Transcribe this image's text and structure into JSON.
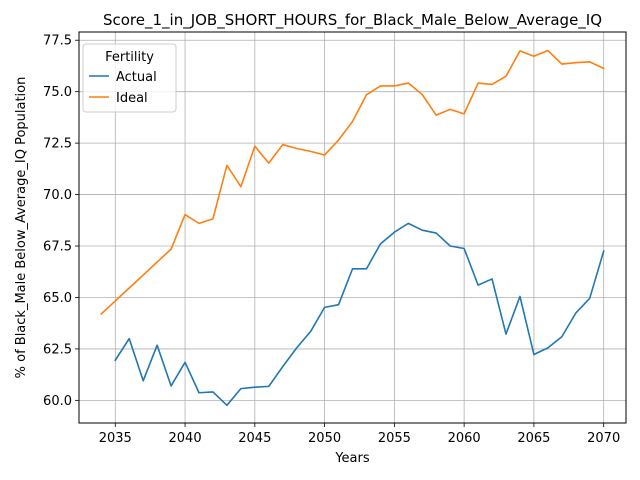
{
  "chart_data": {
    "type": "line",
    "title": "Score_1_in_JOB_SHORT_HOURS_for_Black_Male_Below_Average_IQ",
    "xlabel": "Years",
    "ylabel": "% of Black_Male Below_Average_IQ Population",
    "xlim": [
      2032.4,
      2071.6
    ],
    "ylim": [
      58.9,
      77.9
    ],
    "xticks": [
      2035,
      2040,
      2045,
      2050,
      2055,
      2060,
      2065,
      2070
    ],
    "xtick_labels": [
      "2035",
      "2040",
      "2045",
      "2050",
      "2055",
      "2060",
      "2065",
      "2070"
    ],
    "yticks": [
      60.0,
      62.5,
      65.0,
      67.5,
      70.0,
      72.5,
      75.0,
      77.5
    ],
    "ytick_labels": [
      "60.0",
      "62.5",
      "65.0",
      "67.5",
      "70.0",
      "72.5",
      "75.0",
      "77.5"
    ],
    "grid": true,
    "legend": {
      "title": "Fertility",
      "position": "top-left"
    },
    "series": [
      {
        "name": "Actual",
        "color": "#1f77b4",
        "x": [
          2035,
          2036,
          2037,
          2038,
          2039,
          2040,
          2041,
          2042,
          2043,
          2044,
          2045,
          2046,
          2047,
          2048,
          2049,
          2050,
          2051,
          2052,
          2053,
          2054,
          2055,
          2056,
          2057,
          2058,
          2059,
          2060,
          2061,
          2062,
          2063,
          2064,
          2065,
          2066,
          2067,
          2068,
          2069,
          2070
        ],
        "values": [
          61.95,
          63.0,
          60.95,
          62.68,
          60.7,
          61.85,
          60.37,
          60.41,
          59.76,
          60.57,
          60.64,
          60.68,
          61.64,
          62.55,
          63.35,
          64.52,
          64.65,
          66.39,
          66.39,
          67.6,
          68.17,
          68.6,
          68.27,
          68.13,
          67.5,
          67.38,
          65.6,
          65.9,
          63.22,
          65.05,
          62.23,
          62.55,
          63.09,
          64.24,
          64.96,
          67.25
        ]
      },
      {
        "name": "Ideal",
        "color": "#ff7f0e",
        "x": [
          2034,
          2035,
          2036,
          2037,
          2038,
          2039,
          2040,
          2041,
          2042,
          2043,
          2044,
          2045,
          2046,
          2047,
          2048,
          2049,
          2050,
          2051,
          2052,
          2053,
          2054,
          2055,
          2056,
          2057,
          2058,
          2059,
          2060,
          2061,
          2062,
          2063,
          2064,
          2065,
          2066,
          2067,
          2068,
          2069,
          2070
        ],
        "values": [
          64.2,
          64.83,
          65.46,
          66.09,
          66.72,
          67.35,
          69.03,
          68.6,
          68.82,
          71.42,
          70.38,
          72.35,
          71.53,
          72.43,
          72.24,
          72.1,
          71.92,
          72.65,
          73.55,
          74.85,
          75.28,
          75.28,
          75.42,
          74.86,
          73.86,
          74.14,
          73.92,
          75.42,
          75.35,
          75.75,
          76.98,
          76.72,
          77.0,
          76.34,
          76.41,
          76.45,
          76.13
        ]
      }
    ]
  }
}
